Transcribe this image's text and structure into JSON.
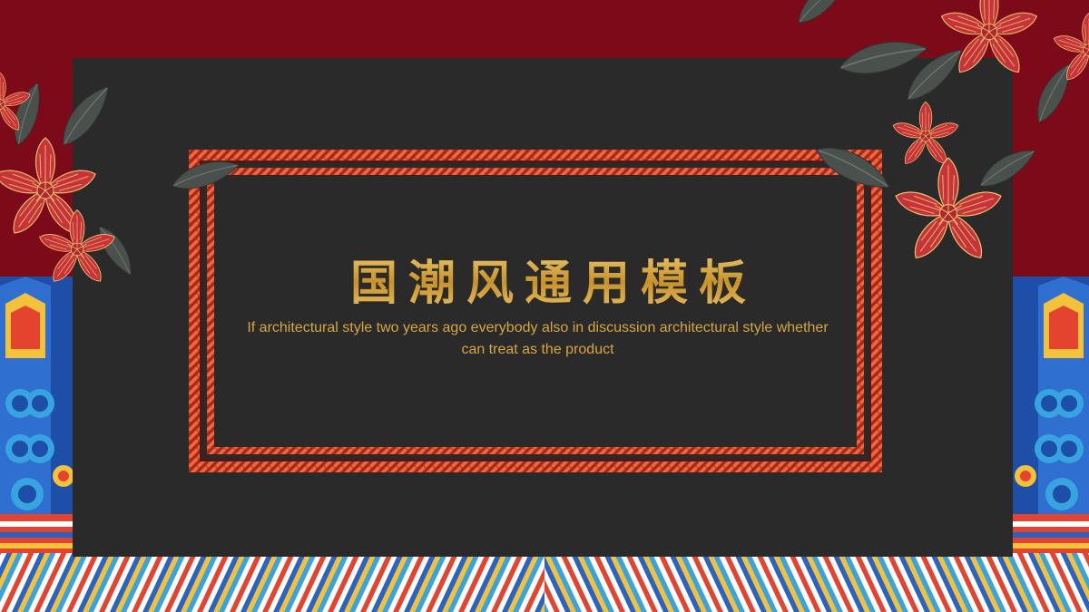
{
  "slide": {
    "title": "国潮风通用模板",
    "subtitle": "If architectural style two years ago everybody also in discussion architectural style whether can treat as the product"
  },
  "colors": {
    "background_red": "#7d0a19",
    "panel_dark": "#2b2a2a",
    "frame_red": "#d2452a",
    "gold": "#d6a53a",
    "flower_red": "#c8323a",
    "leaf_gray": "#4a504c"
  },
  "icons": [
    "flower-cluster-icon",
    "leaf-icon",
    "wave-pattern-icon",
    "cloud-pillar-icon"
  ]
}
